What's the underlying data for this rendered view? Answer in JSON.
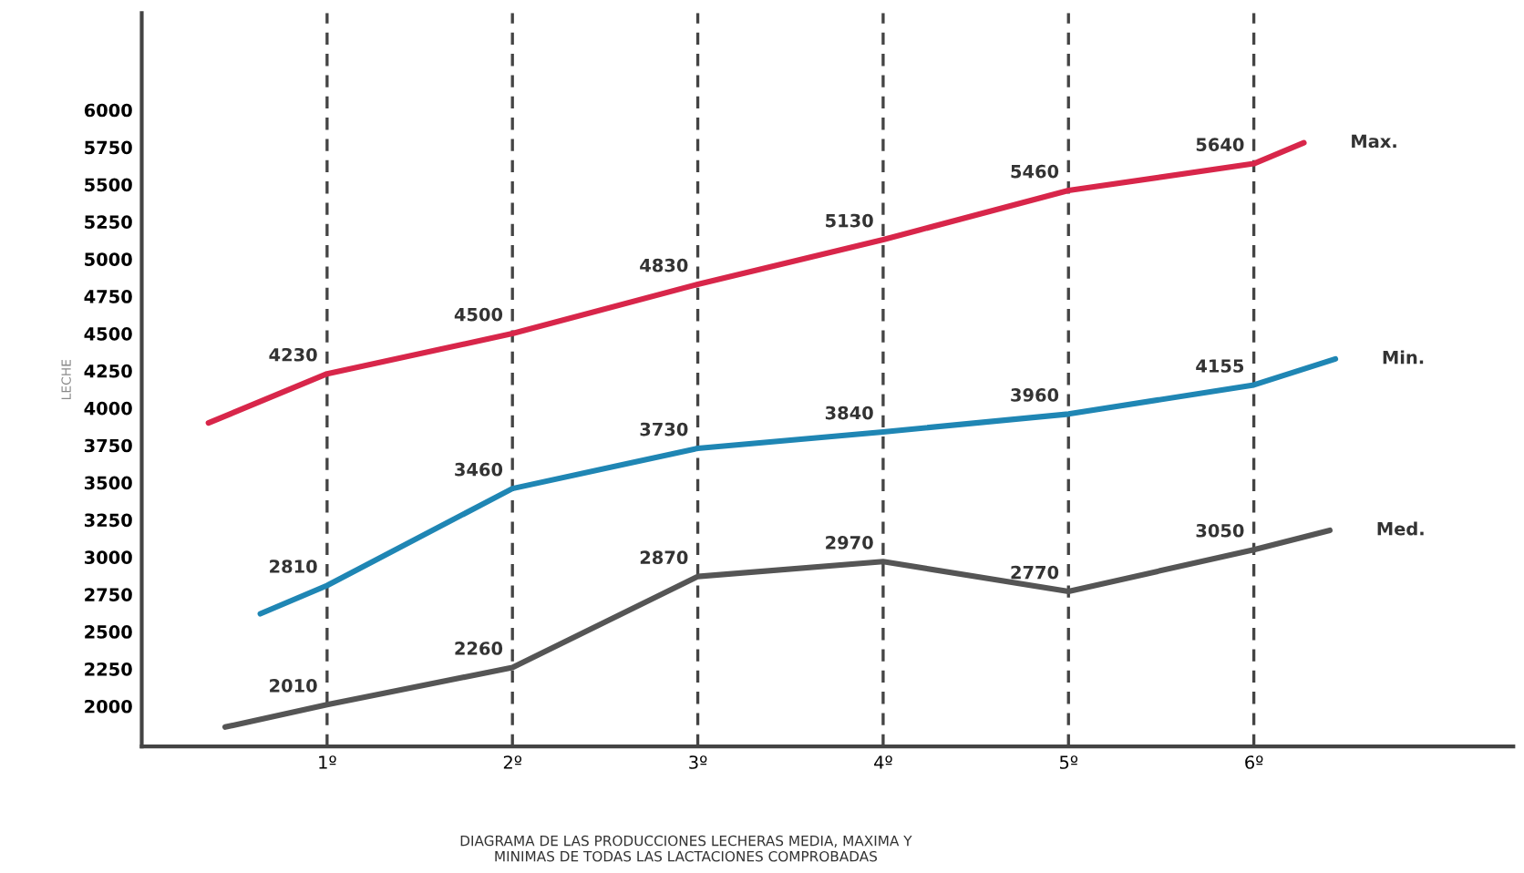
{
  "chart_data": {
    "type": "line",
    "ylabel": "LECHE",
    "series": [
      {
        "name": "Max.",
        "color": "#d8264a",
        "x": [
          0.36,
          1,
          2,
          3,
          4,
          5,
          6,
          6.27
        ],
        "values": [
          3900,
          4230,
          4500,
          4830,
          5130,
          5460,
          5640,
          5780
        ],
        "value_labels": [
          null,
          "4230",
          "4500",
          "4830",
          "5130",
          "5460",
          "5640",
          null
        ]
      },
      {
        "name": "Min.",
        "color": "#1f86b4",
        "x": [
          0.64,
          1,
          2,
          3,
          4,
          5,
          6,
          6.44
        ],
        "values": [
          2620,
          2810,
          3460,
          3730,
          3840,
          3960,
          4155,
          4330
        ],
        "value_labels": [
          null,
          "2810",
          "3460",
          "3730",
          "3840",
          "3960",
          "4155",
          null
        ]
      },
      {
        "name": "Med.",
        "color": "#555555",
        "x": [
          0.45,
          1,
          2,
          3,
          4,
          5,
          6,
          6.41
        ],
        "values": [
          1860,
          2010,
          2260,
          2870,
          2970,
          2770,
          3050,
          3180
        ],
        "value_labels": [
          null,
          "2010",
          "2260",
          "2870",
          "2970",
          "2770",
          "3050",
          null
        ]
      }
    ],
    "xlim": [
      0,
      7.4
    ],
    "xticks": [
      {
        "value": 1,
        "label": "1º"
      },
      {
        "value": 2,
        "label": "2º"
      },
      {
        "value": 3,
        "label": "3º"
      },
      {
        "value": 4,
        "label": "4º"
      },
      {
        "value": 5,
        "label": "5º"
      },
      {
        "value": 6,
        "label": "6º"
      }
    ],
    "ylim": [
      1730,
      6650
    ],
    "yticks": [
      2000,
      2250,
      2500,
      2750,
      3000,
      3250,
      3500,
      3750,
      4000,
      4250,
      4500,
      4750,
      5000,
      5250,
      5500,
      5750,
      6000
    ],
    "grid": "x",
    "line_style": "solid",
    "marker": "none",
    "legend": false,
    "annotations": [
      "DIAGRAMA DE LAS PRODUCCIONES LECHERAS MEDIA, MAXIMA Y\nMINIMAS DE TODAS LAS LACTACIONES COMPROBADAS"
    ]
  }
}
